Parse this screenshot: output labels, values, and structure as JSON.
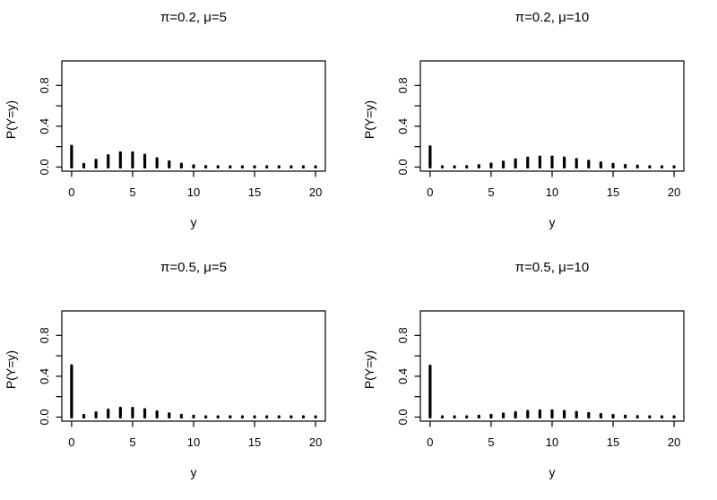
{
  "figure": {
    "background": "#ffffff",
    "ink": "#000000",
    "layout": "2x2-grid-of-pmf-plots"
  },
  "chart_data": [
    {
      "type": "bar",
      "style": "pmf-spikes",
      "title": "π=0.2, μ=5",
      "pi": 0.2,
      "mu": 5,
      "xlabel": "y",
      "ylabel": "P(Y=y)",
      "xlim": [
        -0.8,
        20.8
      ],
      "ylim": [
        -0.04,
        1.04
      ],
      "xticks": [
        0,
        5,
        10,
        15,
        20
      ],
      "xtick_labels": [
        "0",
        "5",
        "10",
        "15",
        "20"
      ],
      "yticks": [
        0,
        0.2,
        0.4,
        0.6,
        0.8
      ],
      "ytick_labels": [
        "0.0",
        "",
        "0.4",
        "",
        "0.8"
      ],
      "grid": false,
      "legend": null,
      "x": [
        0,
        1,
        2,
        3,
        4,
        5,
        6,
        7,
        8,
        9,
        10,
        11,
        12,
        13,
        14,
        15,
        16,
        17,
        18,
        19,
        20
      ],
      "values": [
        0.2054,
        0.027,
        0.0674,
        0.1123,
        0.1404,
        0.1404,
        0.117,
        0.0836,
        0.0522,
        0.029,
        0.0145,
        0.0066,
        0.0027,
        0.0011,
        0.0004,
        0.0001,
        0.0,
        0.0,
        0.0,
        0.0,
        0.0
      ]
    },
    {
      "type": "bar",
      "style": "pmf-spikes",
      "title": "π=0.2, μ=10",
      "pi": 0.2,
      "mu": 10,
      "xlabel": "y",
      "ylabel": "P(Y=y)",
      "xlim": [
        -0.8,
        20.8
      ],
      "ylim": [
        -0.04,
        1.04
      ],
      "xticks": [
        0,
        5,
        10,
        15,
        20
      ],
      "xtick_labels": [
        "0",
        "5",
        "10",
        "15",
        "20"
      ],
      "yticks": [
        0,
        0.2,
        0.4,
        0.6,
        0.8
      ],
      "ytick_labels": [
        "0.0",
        "",
        "0.4",
        "",
        "0.8"
      ],
      "grid": false,
      "legend": null,
      "x": [
        0,
        1,
        2,
        3,
        4,
        5,
        6,
        7,
        8,
        9,
        10,
        11,
        12,
        13,
        14,
        15,
        16,
        17,
        18,
        19,
        20
      ],
      "values": [
        0.2,
        0.0004,
        0.0018,
        0.0061,
        0.0151,
        0.0303,
        0.0504,
        0.0721,
        0.0901,
        0.1001,
        0.1001,
        0.091,
        0.0758,
        0.0583,
        0.0417,
        0.0278,
        0.0174,
        0.0102,
        0.0057,
        0.003,
        0.0015
      ]
    },
    {
      "type": "bar",
      "style": "pmf-spikes",
      "title": "π=0.5, μ=5",
      "pi": 0.5,
      "mu": 5,
      "xlabel": "y",
      "ylabel": "P(Y=y)",
      "xlim": [
        -0.8,
        20.8
      ],
      "ylim": [
        -0.04,
        1.04
      ],
      "xticks": [
        0,
        5,
        10,
        15,
        20
      ],
      "xtick_labels": [
        "0",
        "5",
        "10",
        "15",
        "20"
      ],
      "yticks": [
        0,
        0.2,
        0.4,
        0.6,
        0.8
      ],
      "ytick_labels": [
        "0.0",
        "",
        "0.4",
        "",
        "0.8"
      ],
      "grid": false,
      "legend": null,
      "x": [
        0,
        1,
        2,
        3,
        4,
        5,
        6,
        7,
        8,
        9,
        10,
        11,
        12,
        13,
        14,
        15,
        16,
        17,
        18,
        19,
        20
      ],
      "values": [
        0.5034,
        0.0168,
        0.0421,
        0.0702,
        0.0877,
        0.0877,
        0.0731,
        0.0522,
        0.0326,
        0.0181,
        0.0091,
        0.0041,
        0.0017,
        0.0007,
        0.0002,
        0.0001,
        0.0,
        0.0,
        0.0,
        0.0,
        0.0
      ]
    },
    {
      "type": "bar",
      "style": "pmf-spikes",
      "title": "π=0.5, μ=10",
      "pi": 0.5,
      "mu": 10,
      "xlabel": "y",
      "ylabel": "P(Y=y)",
      "xlim": [
        -0.8,
        20.8
      ],
      "ylim": [
        -0.04,
        1.04
      ],
      "xticks": [
        0,
        5,
        10,
        15,
        20
      ],
      "xtick_labels": [
        "0",
        "5",
        "10",
        "15",
        "20"
      ],
      "yticks": [
        0,
        0.2,
        0.4,
        0.6,
        0.8
      ],
      "ytick_labels": [
        "0.0",
        "",
        "0.4",
        "",
        "0.8"
      ],
      "grid": false,
      "legend": null,
      "x": [
        0,
        1,
        2,
        3,
        4,
        5,
        6,
        7,
        8,
        9,
        10,
        11,
        12,
        13,
        14,
        15,
        16,
        17,
        18,
        19,
        20
      ],
      "values": [
        0.5,
        0.0002,
        0.0011,
        0.0038,
        0.0095,
        0.0189,
        0.0315,
        0.045,
        0.0563,
        0.0626,
        0.0626,
        0.0569,
        0.0474,
        0.0365,
        0.026,
        0.0174,
        0.0109,
        0.0064,
        0.0035,
        0.0019,
        0.0009
      ]
    }
  ]
}
